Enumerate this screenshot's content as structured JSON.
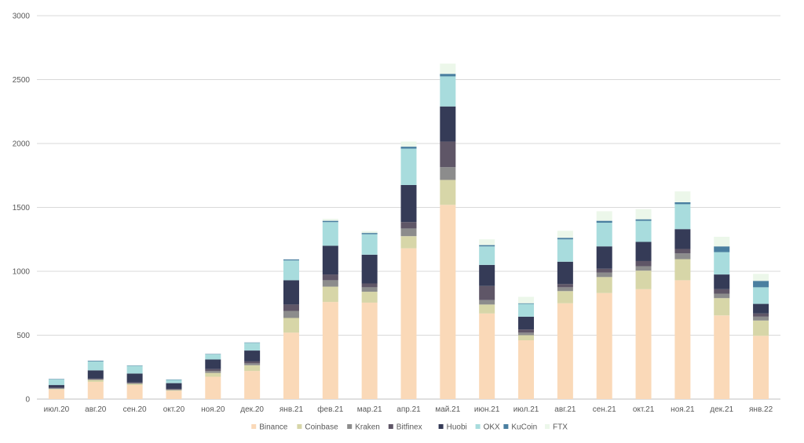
{
  "chart_data": {
    "type": "bar",
    "stacked": true,
    "title": "",
    "xlabel": "",
    "ylabel": "",
    "ylim": [
      0,
      3000
    ],
    "yticks": [
      0,
      500,
      1000,
      1500,
      2000,
      2500,
      3000
    ],
    "grid": true,
    "legend_position": "bottom",
    "categories": [
      "июл.20",
      "авг.20",
      "сен.20",
      "окт.20",
      "ноя.20",
      "дек.20",
      "янв.21",
      "фев.21",
      "мар.21",
      "апр.21",
      "май.21",
      "июн.21",
      "июл.21",
      "авг.21",
      "сен.21",
      "окт.21",
      "ноя.21",
      "дек.21",
      "янв.22"
    ],
    "series": [
      {
        "name": "Binance",
        "color": "#fad9b8",
        "values": [
          75,
          135,
          110,
          65,
          175,
          220,
          520,
          760,
          755,
          1180,
          1520,
          670,
          460,
          750,
          830,
          860,
          930,
          655,
          495
        ]
      },
      {
        "name": "Coinbase",
        "color": "#d7d6a8",
        "values": [
          5,
          15,
          10,
          5,
          30,
          45,
          115,
          120,
          85,
          95,
          195,
          70,
          40,
          95,
          125,
          145,
          165,
          135,
          120
        ]
      },
      {
        "name": "Kraken",
        "color": "#8c8c8c",
        "values": [
          5,
          5,
          5,
          5,
          15,
          15,
          55,
          50,
          35,
          60,
          100,
          35,
          20,
          30,
          35,
          35,
          45,
          35,
          30
        ]
      },
      {
        "name": "Bitfinex",
        "color": "#5f5667",
        "values": [
          5,
          5,
          5,
          5,
          15,
          15,
          50,
          45,
          30,
          50,
          200,
          110,
          25,
          25,
          30,
          40,
          35,
          35,
          25
        ]
      },
      {
        "name": "Huobi",
        "color": "#353b57",
        "values": [
          20,
          65,
          70,
          45,
          75,
          85,
          190,
          225,
          225,
          290,
          275,
          165,
          100,
          175,
          175,
          150,
          155,
          115,
          75
        ]
      },
      {
        "name": "OKX",
        "color": "#a8dcdd",
        "values": [
          45,
          70,
          60,
          25,
          40,
          60,
          155,
          185,
          160,
          285,
          235,
          145,
          100,
          175,
          185,
          165,
          195,
          175,
          130
        ]
      },
      {
        "name": "KuCoin",
        "color": "#4a7fa0",
        "values": [
          3,
          5,
          3,
          3,
          3,
          3,
          8,
          10,
          10,
          15,
          20,
          10,
          5,
          12,
          15,
          12,
          15,
          45,
          50
        ]
      },
      {
        "name": "FTX",
        "color": "#ecf7ea",
        "values": [
          0,
          0,
          0,
          0,
          0,
          0,
          0,
          15,
          15,
          40,
          80,
          45,
          50,
          55,
          75,
          80,
          85,
          75,
          55
        ]
      }
    ]
  }
}
